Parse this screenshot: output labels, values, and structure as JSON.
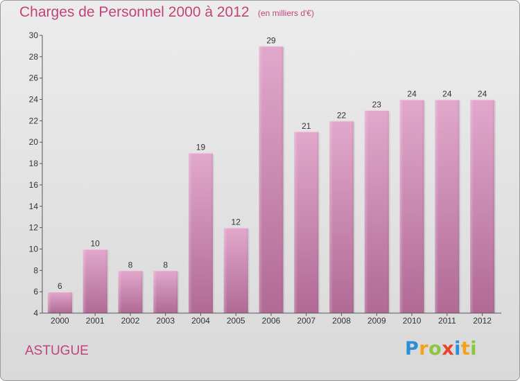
{
  "header": {
    "title": "Charges de Personnel 2000 à 2012",
    "subtitle": "(en milliers d'€)"
  },
  "footer": {
    "commune": "ASTUGUE",
    "brand": "Proxiti"
  },
  "colors": {
    "bar_top": "#e2a8cc",
    "bar_bottom": "#b06a95",
    "text_accent": "#c0447a"
  },
  "chart_data": {
    "type": "bar",
    "categories": [
      "2000",
      "2001",
      "2002",
      "2003",
      "2004",
      "2005",
      "2006",
      "2007",
      "2008",
      "2009",
      "2010",
      "2011",
      "2012"
    ],
    "values": [
      6,
      10,
      8,
      8,
      19,
      12,
      29,
      21,
      22,
      23,
      24,
      24,
      24
    ],
    "title": "Charges de Personnel 2000 à 2012",
    "subtitle": "(en milliers d'€)",
    "ylim": [
      4,
      30
    ],
    "yticks": [
      4,
      6,
      8,
      10,
      12,
      14,
      16,
      18,
      20,
      22,
      24,
      26,
      28,
      30
    ],
    "grid": false,
    "legend": "none"
  }
}
